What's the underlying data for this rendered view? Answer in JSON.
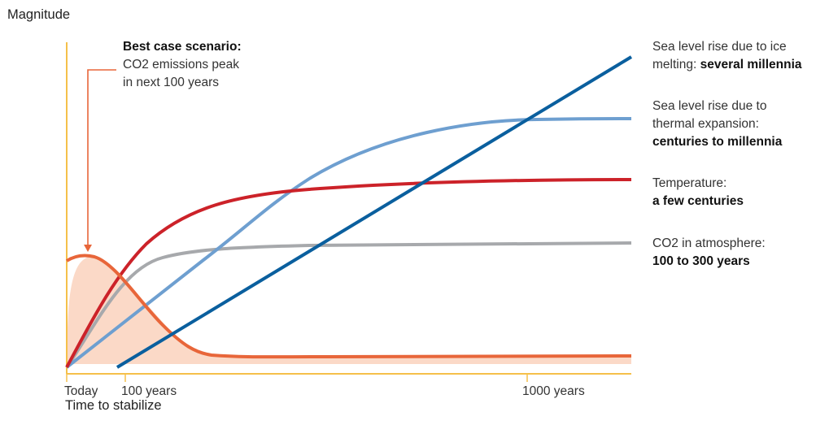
{
  "chart_data": {
    "type": "line",
    "ylabel": "Magnitude",
    "xlabel": "Time to stabilize",
    "x_ticks": [
      "Today",
      "100 years",
      "1000 years"
    ],
    "y_tick_labels": false,
    "legend_placement": "right, inline labels",
    "grid": false,
    "annotation": {
      "title": "Best case scenario:",
      "lines": [
        "CO2 emissions peak",
        "in next 100 years"
      ]
    },
    "series": [
      {
        "name": "CO2 emissions",
        "color": "#e8663a",
        "fill": "#fbd9c7"
      },
      {
        "name": "CO2 in atmosphere",
        "label_line1": "CO2 in atmosphere:",
        "label_line2": "100 to 300 years",
        "color": "#a7a9ac"
      },
      {
        "name": "Temperature",
        "label_line1": "Temperature:",
        "label_line2": "a few centuries",
        "color": "#cc2229"
      },
      {
        "name": "Sea level rise due to thermal expansion",
        "label_line1": "Sea level rise due to",
        "label_line2": "thermal expansion:",
        "label_line3": "centuries to millennia",
        "color": "#6e9fd0"
      },
      {
        "name": "Sea level rise due to ice melting",
        "label_line1": "Sea level rise due to ice",
        "label_line2_plain": "melting: ",
        "label_line2_bold": "several millennia",
        "color": "#0a5f9e"
      }
    ]
  },
  "colors": {
    "axis": "#f5c04a"
  }
}
